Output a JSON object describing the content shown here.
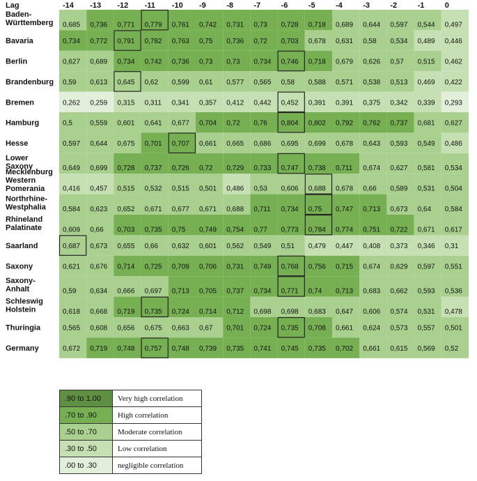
{
  "chart_data": {
    "type": "heatmap",
    "corner_label": "Lag",
    "columns": [
      "-14",
      "-13",
      "-12",
      "-11",
      "-10",
      "-9",
      "-8",
      "-7",
      "-6",
      "-5",
      "-4",
      "-3",
      "-2",
      "-1",
      "0"
    ],
    "rows": [
      {
        "label": [
          "Baden-",
          "Württemberg"
        ],
        "values": [
          "0,685",
          "0,736",
          "0,771",
          "0,779",
          "0,761",
          "0,742",
          "0,731",
          "0,73",
          "0,728",
          "0,718",
          "0,689",
          "0,644",
          "0,597",
          "0,544",
          "0,497"
        ],
        "highlight": "-11"
      },
      {
        "label": [
          "Bavaria"
        ],
        "values": [
          "0,734",
          "0,772",
          "0,791",
          "0,782",
          "0,763",
          "0,75",
          "0,736",
          "0,72",
          "0,703",
          "0,678",
          "0,631",
          "0,58",
          "0,534",
          "0,489",
          "0,446"
        ],
        "highlight": "-12"
      },
      {
        "label": [
          "Berlin"
        ],
        "values": [
          "0,627",
          "0,689",
          "0,734",
          "0,742",
          "0,736",
          "0,73",
          "0,73",
          "0,734",
          "0,746",
          "0,718",
          "0,679",
          "0,626",
          "0,57",
          "0,515",
          "0,462"
        ],
        "highlight": "-6"
      },
      {
        "label": [
          "Brandenburg"
        ],
        "values": [
          "0,59",
          "0,613",
          "0,645",
          "0,62",
          "0,599",
          "0,61",
          "0,577",
          "0,565",
          "0,58",
          "0,588",
          "0,571",
          "0,538",
          "0,513",
          "0,469",
          "0,422"
        ],
        "highlight": "-12"
      },
      {
        "label": [
          "Bremen"
        ],
        "values": [
          "0,262",
          "0,259",
          "0,315",
          "0,311",
          "0,341",
          "0,357",
          "0,412",
          "0,442",
          "0,452",
          "0,391",
          "0,391",
          "0,375",
          "0,342",
          "0,339",
          "0,293"
        ],
        "highlight": "-6"
      },
      {
        "label": [
          "Hamburg"
        ],
        "values": [
          "0,5",
          "0,559",
          "0,601",
          "0,641",
          "0,677",
          "0,704",
          "0,72",
          "0,76",
          "0,804",
          "0,802",
          "0,792",
          "0,762",
          "0,737",
          "0,681",
          "0,627"
        ],
        "highlight": "-6"
      },
      {
        "label": [
          "Hesse"
        ],
        "values": [
          "0,597",
          "0,644",
          "0,675",
          "0,701",
          "0,707",
          "0,661",
          "0,665",
          "0,686",
          "0,695",
          "0,699",
          "0,678",
          "0,643",
          "0,593",
          "0,549",
          "0,486"
        ],
        "highlight": "-10"
      },
      {
        "label": [
          "Lower",
          "Saxony"
        ],
        "values": [
          "0,649",
          "0,699",
          "0,728",
          "0,737",
          "0,726",
          "0,72",
          "0,729",
          "0,733",
          "0,747",
          "0,738",
          "0,711",
          "0,674",
          "0,627",
          "0,581",
          "0,534"
        ],
        "highlight": "-6"
      },
      {
        "label": [
          "Mecklenburg",
          "Western",
          "Pomerania"
        ],
        "values": [
          "0,416",
          "0,457",
          "0,515",
          "0,532",
          "0,515",
          "0,501",
          "0,486",
          "0,53",
          "0,606",
          "0,688",
          "0,678",
          "0,66",
          "0,589",
          "0,531",
          "0,504"
        ],
        "highlight": "-5"
      },
      {
        "label": [
          "Northrhine-",
          "Westphalia"
        ],
        "values": [
          "0,584",
          "0,623",
          "0,652",
          "0,671",
          "0,677",
          "0,671",
          "0,688",
          "0,711",
          "0,734",
          "0,75",
          "0,747",
          "0,713",
          "0,673",
          "0,64",
          "0,584"
        ],
        "highlight": "-5"
      },
      {
        "label": [
          "Rhineland",
          "Palatinate"
        ],
        "values": [
          "0,609",
          "0,66",
          "0,703",
          "0,735",
          "0,75",
          "0,749",
          "0,754",
          "0,77",
          "0,773",
          "0,784",
          "0,774",
          "0,751",
          "0,722",
          "0,671",
          "0,617"
        ],
        "highlight": "-5"
      },
      {
        "label": [
          "Saarland"
        ],
        "values": [
          "0,687",
          "0,673",
          "0,655",
          "0,66",
          "0,632",
          "0,601",
          "0,562",
          "0,549",
          "0,51",
          "0,479",
          "0,447",
          "0,408",
          "0,373",
          "0,346",
          "0,31"
        ],
        "highlight": "-14"
      },
      {
        "label": [
          "Saxony"
        ],
        "values": [
          "0,621",
          "0,676",
          "0,714",
          "0,725",
          "0,709",
          "0,706",
          "0,731",
          "0,749",
          "0,768",
          "0,756",
          "0,715",
          "0,674",
          "0,629",
          "0,597",
          "0,551"
        ],
        "highlight": "-6"
      },
      {
        "label": [
          "Saxony-",
          "Anhalt"
        ],
        "values": [
          "0,59",
          "0,634",
          "0,666",
          "0,697",
          "0,713",
          "0,705",
          "0,737",
          "0,734",
          "0,771",
          "0,74",
          "0,713",
          "0,683",
          "0,662",
          "0,593",
          "0,536"
        ],
        "highlight": "-6"
      },
      {
        "label": [
          "Schleswig",
          "Holstein"
        ],
        "values": [
          "0,618",
          "0,668",
          "0,719",
          "0,735",
          "0,724",
          "0,714",
          "0,712",
          "0,698",
          "0,698",
          "0,683",
          "0,647",
          "0,606",
          "0,574",
          "0,531",
          "0,478"
        ],
        "highlight": "-11"
      },
      {
        "label": [
          "Thuringia"
        ],
        "values": [
          "0,565",
          "0,608",
          "0,656",
          "0,675",
          "0,663",
          "0,67",
          "0,701",
          "0,724",
          "0,735",
          "0,708",
          "0,661",
          "0,624",
          "0,573",
          "0,557",
          "0,501"
        ],
        "highlight": "-6"
      },
      {
        "label": [
          "Germany"
        ],
        "values": [
          "0,672",
          "0,719",
          "0,748",
          "0,757",
          "0,748",
          "0,739",
          "0,735",
          "0,741",
          "0,745",
          "0,735",
          "0,702",
          "0,661",
          "0,615",
          "0,569",
          "0,52"
        ],
        "highlight": "-11"
      }
    ],
    "legend": [
      {
        "range": ".90 to 1.00",
        "description": "Very high correlation",
        "color": "#5e8f42",
        "min": 0.9
      },
      {
        "range": ".70 to .90",
        "description": "High correlation",
        "color": "#77b052",
        "min": 0.7
      },
      {
        "range": ".50 to .70",
        "description": "Moderate correlation",
        "color": "#a9d08e",
        "min": 0.5
      },
      {
        "range": ".30 to .50",
        "description": "Low correlation",
        "color": "#c6e0b4",
        "min": 0.3
      },
      {
        "range": ".00 to .30",
        "description": "negligible correlation",
        "color": "#e2efda",
        "min": 0.0
      }
    ]
  }
}
